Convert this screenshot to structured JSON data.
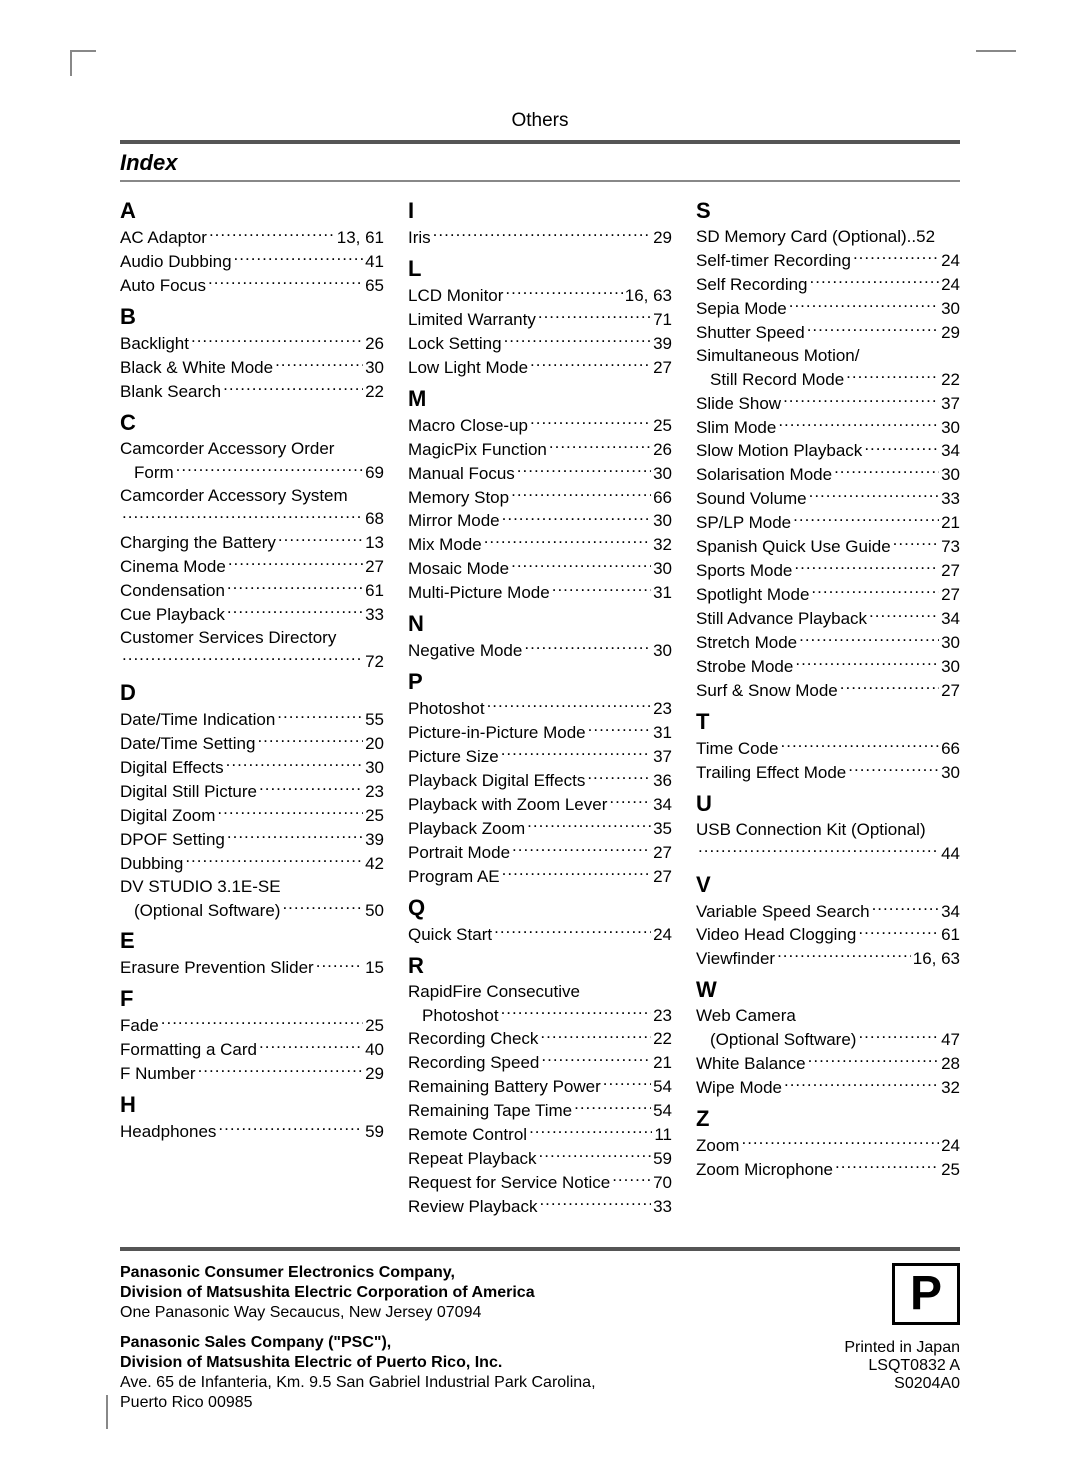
{
  "header": {
    "section": "Others",
    "title": "Index"
  },
  "columns": [
    [
      {
        "letter": "A",
        "entries": [
          {
            "label": "AC Adaptor",
            "page": "13, 61"
          },
          {
            "label": "Audio Dubbing",
            "page": "41"
          },
          {
            "label": "Auto Focus",
            "page": "65"
          }
        ]
      },
      {
        "letter": "B",
        "entries": [
          {
            "label": "Backlight",
            "page": "26"
          },
          {
            "label": "Black & White Mode",
            "page": "30"
          },
          {
            "label": "Blank Search",
            "page": "22"
          }
        ]
      },
      {
        "letter": "C",
        "entries": [
          {
            "wrap": true,
            "first": "Camcorder Accessory Order",
            "second": "Form",
            "page": "69"
          },
          {
            "wrap": true,
            "first": "Camcorder Accessory System",
            "second": "",
            "page": "68"
          },
          {
            "label": "Charging the Battery",
            "page": "13"
          },
          {
            "label": "Cinema Mode",
            "page": "27"
          },
          {
            "label": "Condensation",
            "page": "61"
          },
          {
            "label": "Cue Playback",
            "page": "33"
          },
          {
            "wrap": true,
            "first": "Customer Services Directory",
            "second": "",
            "page": "72"
          }
        ]
      },
      {
        "letter": "D",
        "entries": [
          {
            "label": "Date/Time Indication",
            "page": "55"
          },
          {
            "label": "Date/Time Setting",
            "page": "20"
          },
          {
            "label": "Digital Effects",
            "page": "30"
          },
          {
            "label": "Digital Still Picture",
            "page": "23"
          },
          {
            "label": "Digital Zoom",
            "page": "25"
          },
          {
            "label": "DPOF Setting",
            "page": "39"
          },
          {
            "label": "Dubbing",
            "page": "42"
          },
          {
            "wrap": true,
            "first": "DV STUDIO 3.1E-SE",
            "second": "(Optional Software)",
            "page": "50"
          }
        ]
      },
      {
        "letter": "E",
        "entries": [
          {
            "label": "Erasure Prevention Slider",
            "page": "15"
          }
        ]
      },
      {
        "letter": "F",
        "entries": [
          {
            "label": "Fade",
            "page": "25"
          },
          {
            "label": "Formatting a Card",
            "page": "40"
          },
          {
            "label": "F Number",
            "page": "29"
          }
        ]
      },
      {
        "letter": "H",
        "entries": [
          {
            "label": "Headphones",
            "page": "59"
          }
        ]
      }
    ],
    [
      {
        "letter": "I",
        "entries": [
          {
            "label": "Iris",
            "page": "29"
          }
        ]
      },
      {
        "letter": "L",
        "entries": [
          {
            "label": "LCD Monitor",
            "page": "16, 63"
          },
          {
            "label": "Limited Warranty",
            "page": "71"
          },
          {
            "label": "Lock Setting",
            "page": "39"
          },
          {
            "label": "Low Light Mode",
            "page": "27"
          }
        ]
      },
      {
        "letter": "M",
        "entries": [
          {
            "label": "Macro Close-up",
            "page": "25"
          },
          {
            "label": "MagicPix Function",
            "page": "26"
          },
          {
            "label": "Manual Focus",
            "page": "30"
          },
          {
            "label": "Memory Stop",
            "page": "66"
          },
          {
            "label": "Mirror Mode",
            "page": "30"
          },
          {
            "label": "Mix Mode",
            "page": "32"
          },
          {
            "label": "Mosaic Mode",
            "page": "30"
          },
          {
            "label": "Multi-Picture Mode",
            "page": "31"
          }
        ]
      },
      {
        "letter": "N",
        "entries": [
          {
            "label": "Negative Mode",
            "page": "30"
          }
        ]
      },
      {
        "letter": "P",
        "entries": [
          {
            "label": "Photoshot",
            "page": "23"
          },
          {
            "label": "Picture-in-Picture Mode",
            "page": "31"
          },
          {
            "label": "Picture Size",
            "page": "37"
          },
          {
            "label": "Playback Digital Effects",
            "page": "36"
          },
          {
            "label": "Playback with Zoom Lever",
            "page": "34"
          },
          {
            "label": "Playback Zoom",
            "page": "35"
          },
          {
            "label": "Portrait Mode",
            "page": "27"
          },
          {
            "label": "Program AE",
            "page": "27"
          }
        ]
      },
      {
        "letter": "Q",
        "entries": [
          {
            "label": "Quick Start",
            "page": "24"
          }
        ]
      },
      {
        "letter": "R",
        "entries": [
          {
            "wrap": true,
            "first": "RapidFire Consecutive",
            "second": "Photoshot",
            "page": "23"
          },
          {
            "label": "Recording Check",
            "page": "22"
          },
          {
            "label": "Recording Speed",
            "page": "21"
          },
          {
            "label": "Remaining Battery Power",
            "page": "54"
          },
          {
            "label": "Remaining Tape Time",
            "page": "54"
          },
          {
            "label": "Remote Control",
            "page": "11"
          },
          {
            "label": "Repeat Playback",
            "page": "59"
          },
          {
            "label": "Request for Service Notice",
            "page": "70"
          },
          {
            "label": "Review Playback",
            "page": "33"
          }
        ]
      }
    ],
    [
      {
        "letter": "S",
        "entries": [
          {
            "label": "SD Memory Card (Optional)",
            "page": "52",
            "tight": true
          },
          {
            "label": "Self-timer Recording",
            "page": "24"
          },
          {
            "label": "Self Recording",
            "page": "24"
          },
          {
            "label": "Sepia Mode",
            "page": "30"
          },
          {
            "label": "Shutter Speed",
            "page": "29"
          },
          {
            "wrap": true,
            "first": "Simultaneous Motion/",
            "second": "Still Record Mode",
            "page": "22"
          },
          {
            "label": "Slide Show",
            "page": "37"
          },
          {
            "label": "Slim Mode",
            "page": "30"
          },
          {
            "label": "Slow Motion Playback",
            "page": "34"
          },
          {
            "label": "Solarisation Mode",
            "page": "30"
          },
          {
            "label": "Sound Volume",
            "page": "33"
          },
          {
            "label": "SP/LP Mode",
            "page": "21"
          },
          {
            "label": "Spanish Quick Use Guide",
            "page": "73"
          },
          {
            "label": "Sports Mode",
            "page": "27"
          },
          {
            "label": "Spotlight Mode",
            "page": "27"
          },
          {
            "label": "Still Advance Playback",
            "page": "34"
          },
          {
            "label": "Stretch Mode",
            "page": "30"
          },
          {
            "label": "Strobe Mode",
            "page": "30"
          },
          {
            "label": "Surf & Snow Mode",
            "page": "27"
          }
        ]
      },
      {
        "letter": "T",
        "entries": [
          {
            "label": "Time Code",
            "page": "66"
          },
          {
            "label": "Trailing Effect Mode",
            "page": "30"
          }
        ]
      },
      {
        "letter": "U",
        "entries": [
          {
            "wrap": true,
            "first": "USB Connection Kit (Optional)",
            "second": "",
            "page": "44"
          }
        ]
      },
      {
        "letter": "V",
        "entries": [
          {
            "label": "Variable Speed Search",
            "page": "34"
          },
          {
            "label": "Video Head Clogging",
            "page": "61"
          },
          {
            "label": "Viewfinder",
            "page": "16, 63"
          }
        ]
      },
      {
        "letter": "W",
        "entries": [
          {
            "wrap": true,
            "first": "Web Camera",
            "second": "(Optional Software)",
            "page": "47"
          },
          {
            "label": "White Balance",
            "page": "28"
          },
          {
            "label": "Wipe Mode",
            "page": "32"
          }
        ]
      },
      {
        "letter": "Z",
        "entries": [
          {
            "label": "Zoom",
            "page": "24"
          },
          {
            "label": "Zoom Microphone",
            "page": "25"
          }
        ]
      }
    ]
  ],
  "footer": {
    "left": {
      "block1_b1": "Panasonic Consumer Electronics Company,",
      "block1_b2": "Division of Matsushita Electric Corporation of America",
      "block1_addr": "One Panasonic Way Secaucus, New Jersey 07094",
      "block2_b1": "Panasonic Sales Company (\"PSC\"),",
      "block2_b2": "Division of Matsushita Electric of Puerto Rico, Inc.",
      "block2_addr1": "Ave. 65 de Infanteria, Km. 9.5 San Gabriel Industrial Park Carolina,",
      "block2_addr2": "Puerto Rico 00985"
    },
    "right": {
      "logo": "P",
      "line1": "Printed in Japan",
      "line2": "LSQT0832 A",
      "line3": "S0204A0"
    }
  }
}
